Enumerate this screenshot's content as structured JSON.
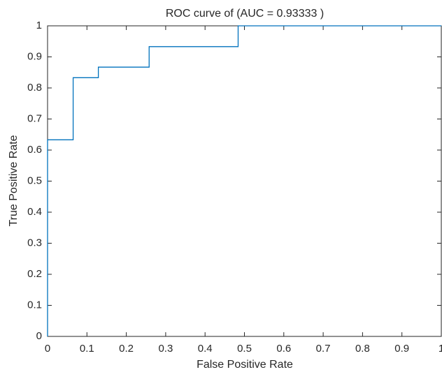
{
  "chart_data": {
    "type": "line",
    "title": "ROC curve of (AUC = 0.93333 )",
    "xlabel": "False Positive Rate",
    "ylabel": "True Positive Rate",
    "x": [
      0,
      0,
      0.065,
      0.065,
      0.129,
      0.129,
      0.258,
      0.258,
      0.484,
      0.484,
      1
    ],
    "values": [
      0,
      0.633,
      0.633,
      0.833,
      0.833,
      0.867,
      0.867,
      0.933,
      0.933,
      1,
      1
    ],
    "color": "#0072bd",
    "xlim": [
      0,
      1
    ],
    "xticks": [
      0,
      0.1,
      0.2,
      0.3,
      0.4,
      0.5,
      0.6,
      0.7,
      0.8,
      0.9,
      1
    ],
    "ylim": [
      0,
      1
    ],
    "yticks": [
      0,
      0.1,
      0.2,
      0.3,
      0.4,
      0.5,
      0.6,
      0.7,
      0.8,
      0.9,
      1
    ],
    "grid": false
  }
}
